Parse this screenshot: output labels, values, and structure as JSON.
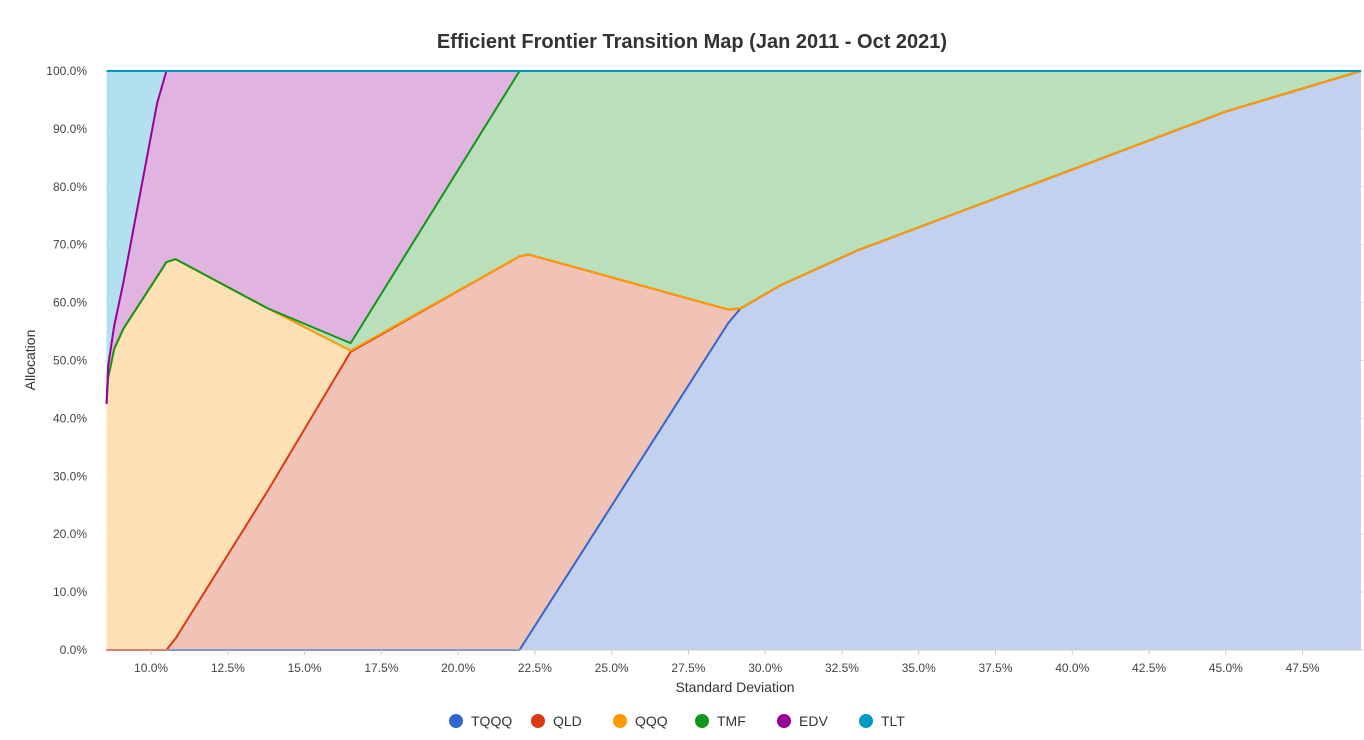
{
  "chart_data": {
    "type": "area",
    "stacked": true,
    "normalized": true,
    "title": "Efficient Frontier Transition Map (Jan 2011 - Oct 2021)",
    "xlabel": "Standard Deviation",
    "ylabel": "Allocation",
    "xlim": [
      8.5,
      49.5
    ],
    "ylim": [
      0,
      100
    ],
    "y_ticks": [
      "0.0%",
      "10.0%",
      "20.0%",
      "30.0%",
      "40.0%",
      "50.0%",
      "60.0%",
      "70.0%",
      "80.0%",
      "90.0%",
      "100.0%"
    ],
    "x_ticks": [
      "10.0%",
      "12.5%",
      "15.0%",
      "17.5%",
      "20.0%",
      "22.5%",
      "25.0%",
      "27.5%",
      "30.0%",
      "32.5%",
      "35.0%",
      "37.5%",
      "40.0%",
      "42.5%",
      "45.0%",
      "47.5%"
    ],
    "legend_position": "bottom",
    "grid": true,
    "x": [
      8.55,
      8.6,
      8.8,
      9.1,
      10.2,
      10.5,
      10.8,
      13.8,
      16.5,
      22.0,
      22.3,
      28.8,
      29.2,
      30.5,
      33.0,
      36.0,
      39.0,
      42.0,
      45.0,
      49.4
    ],
    "series": [
      {
        "name": "TQQQ",
        "color": "#3366cc",
        "fill": "#c2d1f0",
        "values": [
          0,
          0,
          0,
          0,
          0,
          0,
          0,
          0,
          0,
          0,
          2.5,
          56.5,
          59,
          63,
          69,
          75,
          81,
          87,
          93,
          100
        ]
      },
      {
        "name": "QLD",
        "color": "#dc3912",
        "fill": "#f1c2b6",
        "values": [
          0,
          0,
          0,
          0,
          0,
          0,
          2,
          27.5,
          51.5,
          68,
          65.8,
          2.3,
          0,
          0,
          0,
          0,
          0,
          0,
          0,
          0
        ]
      },
      {
        "name": "QQQ",
        "color": "#ff9900",
        "fill": "#fde0b3",
        "values": [
          42.5,
          47,
          52,
          55.5,
          64.5,
          67,
          65.5,
          31.5,
          0.2,
          0,
          0,
          0,
          0,
          0,
          0,
          0,
          0,
          0,
          0,
          0
        ]
      },
      {
        "name": "TMF",
        "color": "#109618",
        "fill": "#b9e0bb",
        "values": [
          0,
          0,
          0,
          0,
          0,
          0,
          0,
          0,
          1.3,
          32,
          31.7,
          41.2,
          41,
          37,
          31,
          25,
          19,
          13,
          7,
          0
        ]
      },
      {
        "name": "EDV",
        "color": "#990099",
        "fill": "#e0b3e0",
        "values": [
          0,
          2,
          4,
          8,
          30,
          33,
          32.5,
          41,
          47,
          0,
          0,
          0,
          0,
          0,
          0,
          0,
          0,
          0,
          0,
          0
        ]
      },
      {
        "name": "TLT",
        "color": "#0099c6",
        "fill": "#b3e0ee",
        "values": [
          57.5,
          51,
          44,
          36.5,
          5.5,
          0,
          0,
          0,
          0,
          0,
          0,
          0,
          0,
          0,
          0,
          0,
          0,
          0,
          0,
          0
        ]
      }
    ]
  }
}
